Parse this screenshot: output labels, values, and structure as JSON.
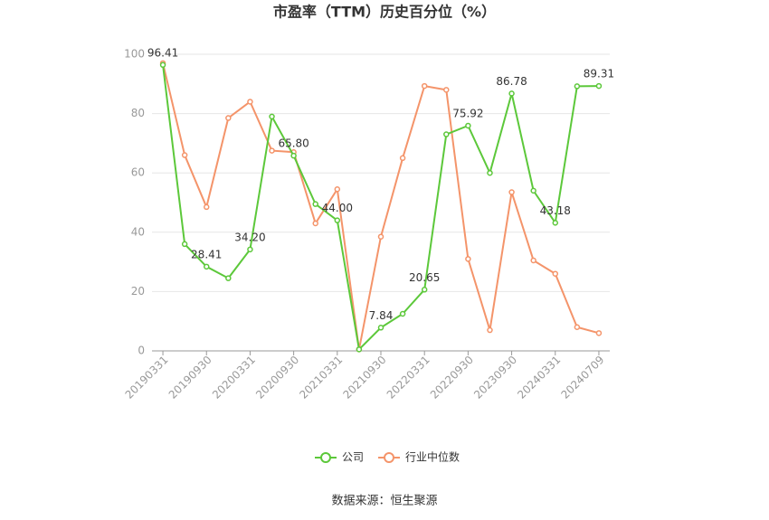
{
  "chart_data": {
    "type": "line",
    "title": "市盈率（TTM）历史百分位（%）",
    "categories": [
      "20190331",
      null,
      "20190930",
      null,
      "20200331",
      null,
      "20200930",
      null,
      "20210331",
      null,
      "20210930",
      null,
      "20220331",
      null,
      "20220930",
      null,
      "20230930",
      null,
      "20240331",
      null,
      "20240709"
    ],
    "series": [
      {
        "name": "公司",
        "color": "#5cc83a",
        "values": [
          96.41,
          36,
          28.41,
          24.5,
          34.2,
          79,
          65.8,
          49.5,
          44,
          0.5,
          7.84,
          12.5,
          20.65,
          73,
          75.92,
          60,
          86.78,
          54,
          43.18,
          89.2,
          89.31
        ],
        "value_labels": [
          "96.41",
          null,
          "28.41",
          null,
          "34.20",
          null,
          "65.80",
          null,
          "44.00",
          null,
          "7.84",
          null,
          "20.65",
          null,
          "75.92",
          null,
          "86.78",
          null,
          "43.18",
          null,
          "89.31"
        ]
      },
      {
        "name": "行业中位数",
        "color": "#f4946a",
        "values": [
          97,
          66,
          48.5,
          78.5,
          84,
          67.5,
          67,
          43,
          54.5,
          0.5,
          38.5,
          65,
          89.3,
          88,
          31,
          7,
          53.5,
          30.5,
          26,
          8,
          6
        ]
      }
    ],
    "ylim": [
      0,
      100
    ],
    "yticks": [
      0,
      20,
      40,
      60,
      80,
      100
    ],
    "grid": true,
    "legend": "bottom",
    "source": "数据来源：恒生聚源"
  }
}
